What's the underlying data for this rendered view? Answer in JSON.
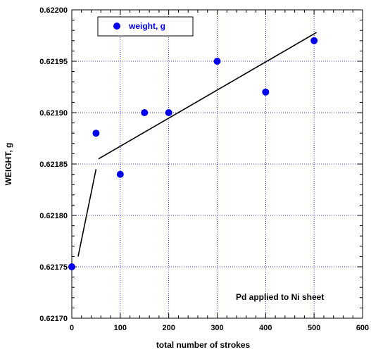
{
  "chart_data": {
    "type": "scatter",
    "title": "",
    "xlabel": "total number of strokes",
    "ylabel": "WEIGHT, g",
    "xlim": [
      0,
      600
    ],
    "ylim": [
      0.6217,
      0.622
    ],
    "xticks": [
      0,
      100,
      200,
      300,
      400,
      500,
      600
    ],
    "yticks": [
      0.6217,
      0.62175,
      0.6218,
      0.62185,
      0.6219,
      0.62195,
      0.622
    ],
    "ytick_labels": [
      "0.62170",
      "0.62175",
      "0.62180",
      "0.62185",
      "0.62190",
      "0.62195",
      "0.62200"
    ],
    "grid": true,
    "legend_position": "top-left",
    "series": [
      {
        "name": "weight, g",
        "color": "#0000ee",
        "marker": "circle",
        "points": [
          {
            "x": 0,
            "y": 0.62175
          },
          {
            "x": 50,
            "y": 0.62188
          },
          {
            "x": 100,
            "y": 0.62184
          },
          {
            "x": 150,
            "y": 0.6219
          },
          {
            "x": 200,
            "y": 0.6219
          },
          {
            "x": 300,
            "y": 0.62195
          },
          {
            "x": 400,
            "y": 0.62192
          },
          {
            "x": 500,
            "y": 0.62197
          }
        ]
      }
    ],
    "fit_lines": [
      {
        "points": [
          {
            "x": 13,
            "y": 0.62176
          },
          {
            "x": 50,
            "y": 0.621845
          }
        ]
      },
      {
        "points": [
          {
            "x": 55,
            "y": 0.621855
          },
          {
            "x": 505,
            "y": 0.621978
          }
        ]
      }
    ],
    "annotation": "Pd applied to Ni sheet"
  }
}
